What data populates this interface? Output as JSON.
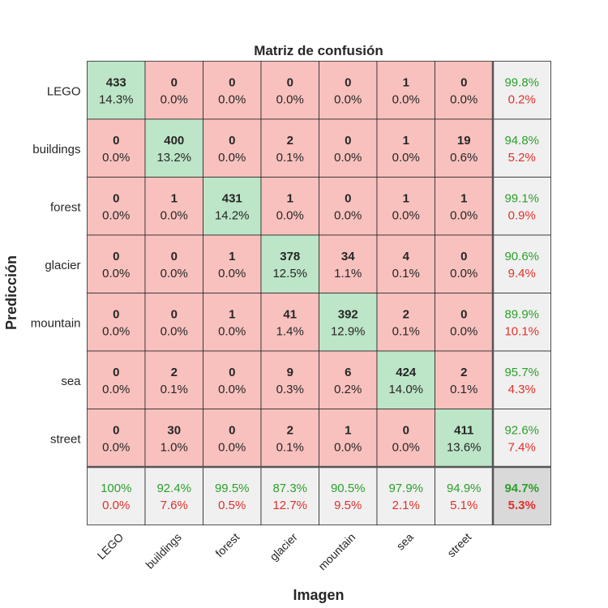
{
  "chart_data": {
    "type": "heatmap",
    "title": "Matriz de confusión",
    "xlabel": "Imagen",
    "ylabel": "Predicción",
    "row_labels": [
      "LEGO",
      "buildings",
      "forest",
      "glacier",
      "mountain",
      "sea",
      "street"
    ],
    "col_labels": [
      "LEGO",
      "buildings",
      "forest",
      "glacier",
      "mountain",
      "sea",
      "street"
    ],
    "counts": [
      [
        433,
        0,
        0,
        0,
        0,
        1,
        0
      ],
      [
        0,
        400,
        0,
        2,
        0,
        1,
        19
      ],
      [
        0,
        1,
        431,
        1,
        0,
        1,
        1
      ],
      [
        0,
        0,
        1,
        378,
        34,
        4,
        0
      ],
      [
        0,
        0,
        1,
        41,
        392,
        2,
        0
      ],
      [
        0,
        2,
        0,
        9,
        6,
        424,
        2
      ],
      [
        0,
        30,
        0,
        2,
        1,
        0,
        411
      ]
    ],
    "percents": [
      [
        "14.3%",
        "0.0%",
        "0.0%",
        "0.0%",
        "0.0%",
        "0.0%",
        "0.0%"
      ],
      [
        "0.0%",
        "13.2%",
        "0.0%",
        "0.1%",
        "0.0%",
        "0.0%",
        "0.6%"
      ],
      [
        "0.0%",
        "0.0%",
        "14.2%",
        "0.0%",
        "0.0%",
        "0.0%",
        "0.0%"
      ],
      [
        "0.0%",
        "0.0%",
        "0.0%",
        "12.5%",
        "1.1%",
        "0.1%",
        "0.0%"
      ],
      [
        "0.0%",
        "0.0%",
        "0.0%",
        "1.4%",
        "12.9%",
        "0.1%",
        "0.0%"
      ],
      [
        "0.0%",
        "0.1%",
        "0.0%",
        "0.3%",
        "0.2%",
        "14.0%",
        "0.1%"
      ],
      [
        "0.0%",
        "1.0%",
        "0.0%",
        "0.1%",
        "0.0%",
        "0.0%",
        "13.6%"
      ]
    ],
    "row_summary": [
      [
        "99.8%",
        "0.2%"
      ],
      [
        "94.8%",
        "5.2%"
      ],
      [
        "99.1%",
        "0.9%"
      ],
      [
        "90.6%",
        "9.4%"
      ],
      [
        "89.9%",
        "10.1%"
      ],
      [
        "95.7%",
        "4.3%"
      ],
      [
        "92.6%",
        "7.4%"
      ]
    ],
    "col_summary": [
      [
        "100%",
        "0.0%"
      ],
      [
        "92.4%",
        "7.6%"
      ],
      [
        "99.5%",
        "0.5%"
      ],
      [
        "87.3%",
        "12.7%"
      ],
      [
        "90.5%",
        "9.5%"
      ],
      [
        "97.9%",
        "2.1%"
      ],
      [
        "94.9%",
        "5.1%"
      ]
    ],
    "overall": [
      "94.7%",
      "5.3%"
    ]
  },
  "colors": {
    "correct_fill": "#bde5c8",
    "incorrect_fill": "#f8c1be",
    "summary_fill": "#f0f0f0",
    "overall_fill": "#d9d9d9",
    "good_text": "#2ca02c",
    "bad_text": "#e0302b",
    "grid_line": "#262626"
  }
}
